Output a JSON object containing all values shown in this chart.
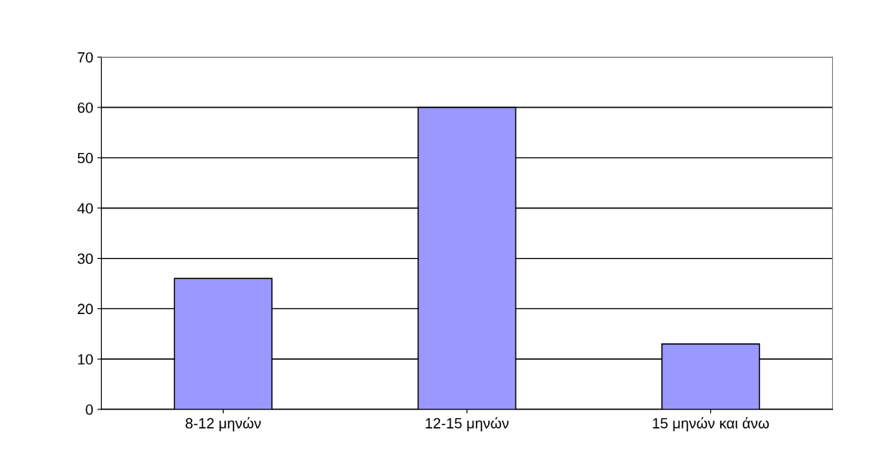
{
  "chart_data": {
    "type": "bar",
    "categories": [
      "8-12 μηνών",
      "12-15 μηνών",
      "15 μηνών και άνω"
    ],
    "values": [
      26,
      60,
      13
    ],
    "color": "#9999ff",
    "ylim": [
      0,
      70
    ],
    "yticks": [
      0,
      10,
      20,
      30,
      40,
      50,
      60,
      70
    ],
    "grid": "y",
    "legend": false
  }
}
